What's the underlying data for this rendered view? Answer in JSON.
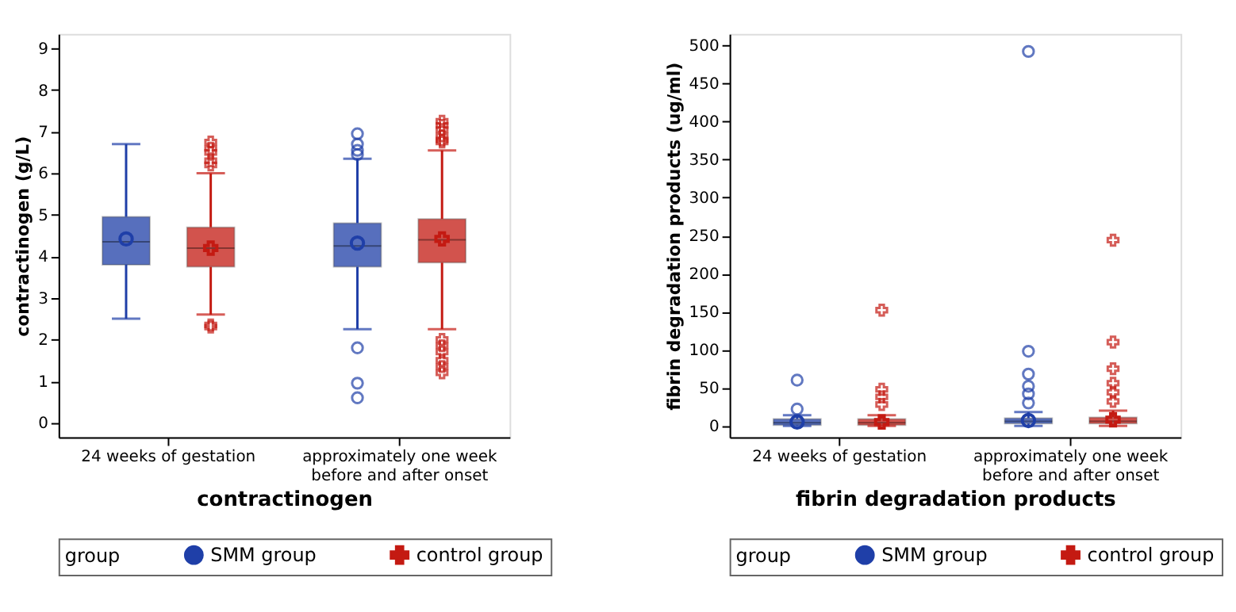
{
  "chart_data": [
    {
      "type": "box",
      "xlabel": "contractinogen",
      "ylabel": "contractinogen (g/L)",
      "legend_title": "group",
      "legend": "bottom",
      "grid": false,
      "categories": [
        "24 weeks of gestation",
        "approximately one week before and after onset"
      ],
      "ylim": [
        -0.35,
        9.35
      ],
      "yticks": [
        0,
        1,
        2,
        3,
        4,
        5,
        6,
        7,
        8,
        9
      ],
      "series": [
        {
          "name": "SMM  group",
          "color": "#1f3fa8",
          "marker": "circle",
          "boxes": [
            {
              "low": 2.5,
              "q1": 3.8,
              "median": 4.35,
              "q3": 4.95,
              "high": 6.7,
              "mean": 4.42
            },
            {
              "low": 2.25,
              "q1": 3.75,
              "median": 4.25,
              "q3": 4.8,
              "high": 6.35,
              "mean": 4.32,
              "outliers": [
                6.45,
                6.55,
                6.7,
                6.95,
                1.8,
                0.95,
                0.6
              ]
            }
          ]
        },
        {
          "name": "control group",
          "color": "#c41a12",
          "marker": "cross",
          "boxes": [
            {
              "low": 2.6,
              "q1": 3.75,
              "median": 4.2,
              "q3": 4.7,
              "high": 6.0,
              "mean": 4.2,
              "outliers": [
                6.2,
                6.3,
                6.5,
                6.6,
                6.75,
                2.3,
                2.35
              ]
            },
            {
              "low": 2.25,
              "q1": 3.85,
              "median": 4.4,
              "q3": 4.9,
              "high": 6.55,
              "mean": 4.42,
              "outliers": [
                6.75,
                6.8,
                6.9,
                7.05,
                7.15,
                7.25,
                2.0,
                1.85,
                1.7,
                1.5,
                1.35,
                1.2
              ]
            }
          ]
        }
      ]
    },
    {
      "type": "box",
      "xlabel": "fibrin degradation products",
      "ylabel": "fibrin degradation products (ug/ml)",
      "legend_title": "group",
      "legend": "bottom",
      "grid": false,
      "categories": [
        "24 weeks of gestation",
        "approximately one week before and after onset"
      ],
      "ylim": [
        -15,
        515
      ],
      "yticks": [
        0,
        50,
        100,
        150,
        200,
        250,
        300,
        350,
        400,
        450,
        500
      ],
      "series": [
        {
          "name": "SMM  group",
          "color": "#1f3fa8",
          "marker": "circle",
          "boxes": [
            {
              "low": 0,
              "q1": 1,
              "median": 4,
              "q3": 9,
              "high": 14,
              "mean": 5,
              "outliers": [
                22,
                60
              ]
            },
            {
              "low": 0,
              "q1": 3,
              "median": 6,
              "q3": 10,
              "high": 18,
              "mean": 7,
              "outliers": [
                30,
                42,
                52,
                68,
                98,
                492
              ]
            }
          ]
        },
        {
          "name": "control group",
          "color": "#c41a12",
          "marker": "cross",
          "boxes": [
            {
              "low": 0,
              "q1": 1,
              "median": 4,
              "q3": 9,
              "high": 14,
              "mean": 5,
              "outliers": [
                28,
                38,
                48,
                152
              ]
            },
            {
              "low": 0,
              "q1": 3,
              "median": 6,
              "q3": 11,
              "high": 20,
              "mean": 8,
              "outliers": [
                32,
                44,
                56,
                75,
                110,
                244
              ]
            }
          ]
        }
      ]
    }
  ]
}
